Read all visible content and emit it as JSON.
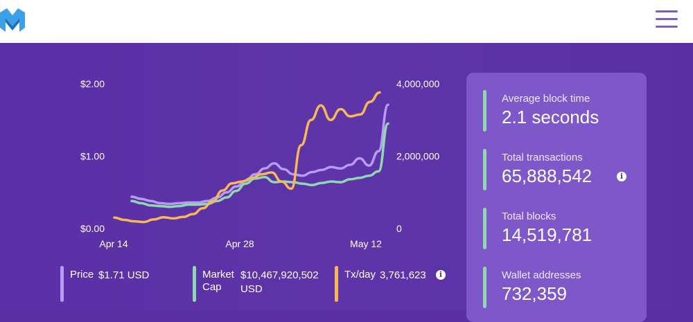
{
  "header": {
    "logo_icon": "metis-m-logo",
    "menu_icon": "hamburger-menu-icon"
  },
  "chart_data": {
    "type": "line",
    "x_tick_labels": [
      "Apr 14",
      "Apr 28",
      "May 12"
    ],
    "y_left_tick_labels": [
      "$2.00",
      "$1.00",
      "$0.00"
    ],
    "y_right_tick_labels": [
      "4,000,000",
      "2,000,000",
      "0"
    ],
    "y_left_range": [
      0,
      2.0
    ],
    "y_right_range": [
      0,
      4000000
    ],
    "x": [
      "Apr 16",
      "Apr 17",
      "Apr 18",
      "Apr 19",
      "Apr 20",
      "Apr 21",
      "Apr 22",
      "Apr 23",
      "Apr 24",
      "Apr 25",
      "Apr 26",
      "Apr 27",
      "Apr 28",
      "Apr 29",
      "Apr 30",
      "May 1",
      "May 2",
      "May 3",
      "May 4",
      "May 5",
      "May 6",
      "May 7",
      "May 8",
      "May 9",
      "May 10",
      "May 11",
      "May 12",
      "May 13"
    ],
    "series": [
      {
        "axis": "left",
        "color": "#b69cf4",
        "values": [
          0.44,
          0.41,
          0.38,
          0.35,
          0.34,
          0.35,
          0.36,
          0.36,
          0.38,
          0.43,
          0.5,
          0.58,
          0.66,
          0.75,
          0.83,
          0.9,
          0.82,
          0.75,
          0.73,
          0.78,
          0.81,
          0.85,
          0.83,
          0.88,
          0.97,
          0.87,
          1.07,
          1.71
        ]
      },
      {
        "axis": "left",
        "color": "#8fd9b0",
        "values": [
          0.38,
          0.35,
          0.32,
          0.31,
          0.3,
          0.31,
          0.33,
          0.33,
          0.34,
          0.38,
          0.43,
          0.52,
          0.62,
          0.69,
          0.71,
          0.64,
          0.65,
          0.64,
          0.62,
          0.6,
          0.63,
          0.65,
          0.64,
          0.68,
          0.7,
          0.73,
          0.79,
          1.45
        ]
      },
      {
        "axis": "right",
        "color": "#f7b955",
        "values": [
          300000,
          240000,
          200000,
          180000,
          250000,
          310000,
          280000,
          320000,
          400000,
          560000,
          750000,
          1050000,
          1250000,
          1300000,
          1400000,
          1500000,
          1550000,
          1300000,
          1100000,
          2300000,
          3000000,
          3400000,
          3000000,
          3300000,
          3100000,
          3150000,
          3500000,
          3761623
        ]
      }
    ]
  },
  "legend": [
    {
      "label": "Price",
      "value": "$1.71 USD",
      "color": "#b69cf4"
    },
    {
      "label": "Market Cap",
      "value": "$10,467,920,502 USD",
      "color": "#8fd9b0"
    },
    {
      "label": "Tx/day",
      "value": "3,761,623",
      "color": "#f7b955",
      "info_icon": "info-icon"
    }
  ],
  "stats": [
    {
      "label": "Average block time",
      "value": "2.1 seconds"
    },
    {
      "label": "Total transactions",
      "value": "65,888,542",
      "info_icon": "info-icon"
    },
    {
      "label": "Total blocks",
      "value": "14,519,781"
    },
    {
      "label": "Wallet addresses",
      "value": "732,359"
    }
  ],
  "colors": {
    "background": "#5a2fa4",
    "panel": "#7e57c9",
    "stat_accent": "#8fd9b0"
  }
}
